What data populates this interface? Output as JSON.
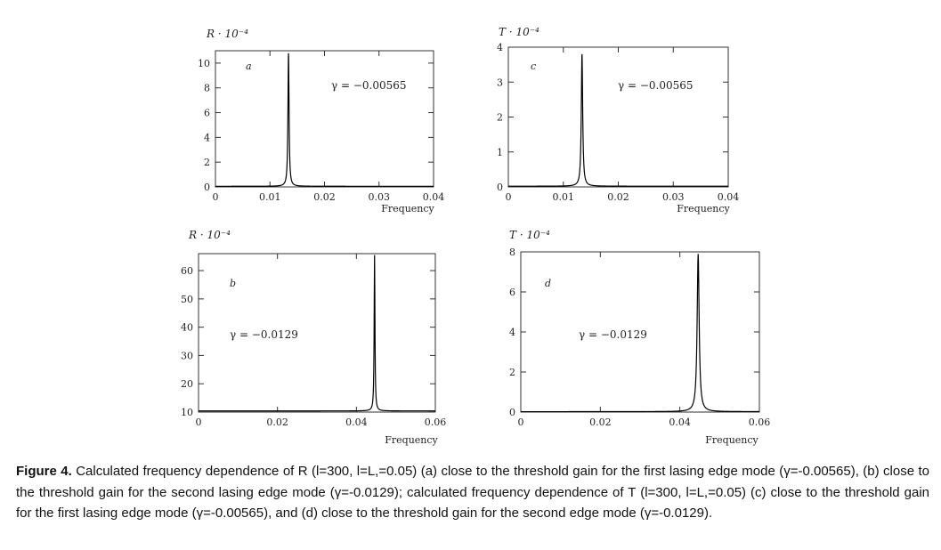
{
  "caption": {
    "label": "Figure 4.",
    "text": " Calculated frequency dependence of R (l=300, l=L,=0.05) (a) close to the threshold gain for the first lasing edge mode (γ=-0.00565), (b) close to the threshold gain for the second lasing edge mode (γ=-0.0129); calculated frequency dependence of T (l=300, l=L,=0.05) (c) close to the threshold gain for the first lasing edge mode (γ=-0.00565), and (d) close to the threshold gain for the second edge mode (γ=-0.0129)."
  },
  "chart_data": [
    {
      "id": "a",
      "type": "line",
      "panel_label": "a",
      "ylabel": "R · 10⁻⁴",
      "xlabel": "Frequency",
      "annotation": "γ = −0.00565",
      "xlim": [
        0,
        0.04
      ],
      "ylim": [
        0,
        11
      ],
      "xticks": [
        0,
        0.01,
        0.02,
        0.03,
        0.04
      ],
      "xtick_labels": [
        "0",
        "0.01",
        "0.02",
        "0.03",
        "0.04"
      ],
      "yticks": [
        0,
        2,
        4,
        6,
        8,
        10
      ],
      "ytick_labels": [
        "0",
        "2",
        "4",
        "6",
        "8",
        "10"
      ],
      "peak": {
        "x": 0.0134,
        "y": 10.8,
        "width": 0.00012,
        "baseline": 0.05
      }
    },
    {
      "id": "c",
      "type": "line",
      "panel_label": "c",
      "ylabel": "T · 10⁻⁴",
      "xlabel": "Frequency",
      "annotation": "γ = −0.00565",
      "xlim": [
        0,
        0.04
      ],
      "ylim": [
        0,
        4
      ],
      "xticks": [
        0,
        0.01,
        0.02,
        0.03,
        0.04
      ],
      "xtick_labels": [
        "0",
        "0.01",
        "0.02",
        "0.03",
        "0.04"
      ],
      "yticks": [
        0,
        1,
        2,
        3,
        4
      ],
      "ytick_labels": [
        "0",
        "1",
        "2",
        "3",
        "4"
      ],
      "peak": {
        "x": 0.0134,
        "y": 3.8,
        "width": 0.00015,
        "baseline": 0.02
      }
    },
    {
      "id": "b",
      "type": "line",
      "panel_label": "b",
      "ylabel": "R · 10⁻⁴",
      "xlabel": "Frequency",
      "annotation": "γ = −0.0129",
      "xlim": [
        0,
        0.06
      ],
      "ylim": [
        10,
        66
      ],
      "xticks": [
        0,
        0.02,
        0.04,
        0.06
      ],
      "xtick_labels": [
        "0",
        "0.02",
        "0.04",
        "0.06"
      ],
      "yticks": [
        10,
        20,
        30,
        40,
        50,
        60
      ],
      "ytick_labels": [
        "10",
        "20",
        "30",
        "40",
        "50",
        "60"
      ],
      "peak": {
        "x": 0.0446,
        "y": 65.5,
        "width": 0.00012,
        "baseline": 10.4
      }
    },
    {
      "id": "d",
      "type": "line",
      "panel_label": "d",
      "ylabel": "T · 10⁻⁴",
      "xlabel": "Frequency",
      "annotation": "γ = −0.0129",
      "xlim": [
        0,
        0.06
      ],
      "ylim": [
        0,
        8
      ],
      "xticks": [
        0,
        0.02,
        0.04,
        0.06
      ],
      "xtick_labels": [
        "0",
        "0.02",
        "0.04",
        "0.06"
      ],
      "yticks": [
        0,
        2,
        4,
        6,
        8
      ],
      "ytick_labels": [
        "0",
        "2",
        "4",
        "6",
        "8"
      ],
      "peak": {
        "x": 0.0446,
        "y": 7.9,
        "width": 0.0003,
        "baseline": 0.02
      }
    }
  ]
}
